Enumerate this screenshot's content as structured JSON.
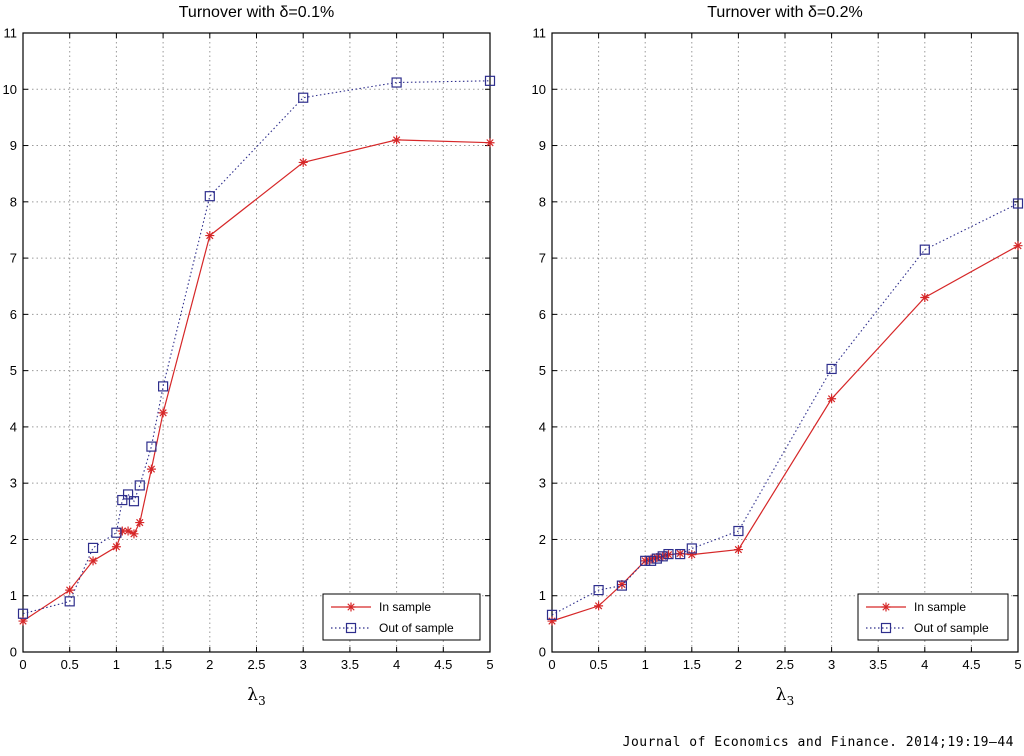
{
  "source_caption": "Journal of Economics and Finance. 2014;19:19–44",
  "colors": {
    "in_sample": "#d62728",
    "out_of_sample": "#2e2e8c",
    "grid": "#9a9a9a"
  },
  "chart_data": [
    {
      "type": "line",
      "title": "Turnover with δ=0.1%",
      "xlabel": "λ",
      "xlabel_subscript": "3",
      "ylabel": "",
      "xlim": [
        0,
        5
      ],
      "ylim": [
        0,
        11
      ],
      "xticks": [
        0,
        0.5,
        1,
        1.5,
        2,
        2.5,
        3,
        3.5,
        4,
        4.5,
        5
      ],
      "xtick_labels": [
        "0",
        "0.5",
        "1",
        "1.5",
        "2",
        "2.5",
        "3",
        "3.5",
        "4",
        "4.5",
        "5"
      ],
      "yticks": [
        0,
        1,
        2,
        3,
        4,
        5,
        6,
        7,
        8,
        9,
        10,
        11
      ],
      "ytick_labels": [
        "0",
        "1",
        "2",
        "3",
        "4",
        "5",
        "6",
        "7",
        "8",
        "9",
        "10",
        "11"
      ],
      "grid": true,
      "legend_position": "bottom-right",
      "series": [
        {
          "name": "In sample",
          "line": "solid",
          "marker": "star",
          "x": [
            0,
            0.5,
            0.75,
            1,
            1.063,
            1.125,
            1.188,
            1.25,
            1.375,
            1.5,
            2,
            3,
            4,
            5
          ],
          "y": [
            0.55,
            1.1,
            1.62,
            1.87,
            2.15,
            2.15,
            2.1,
            2.3,
            3.25,
            4.25,
            7.4,
            8.7,
            9.1,
            9.05
          ]
        },
        {
          "name": "Out of sample",
          "line": "dotted",
          "marker": "square",
          "x": [
            0,
            0.5,
            0.75,
            1,
            1.063,
            1.125,
            1.188,
            1.25,
            1.375,
            1.5,
            2,
            3,
            4,
            5
          ],
          "y": [
            0.68,
            0.9,
            1.85,
            2.12,
            2.7,
            2.8,
            2.68,
            2.96,
            3.65,
            4.72,
            8.1,
            9.85,
            10.12,
            10.15
          ]
        }
      ]
    },
    {
      "type": "line",
      "title": "Turnover with δ=0.2%",
      "xlabel": "λ",
      "xlabel_subscript": "3",
      "ylabel": "",
      "xlim": [
        0,
        5
      ],
      "ylim": [
        0,
        11
      ],
      "xticks": [
        0,
        0.5,
        1,
        1.5,
        2,
        2.5,
        3,
        3.5,
        4,
        4.5,
        5
      ],
      "xtick_labels": [
        "0",
        "0.5",
        "1",
        "1.5",
        "2",
        "2.5",
        "3",
        "3.5",
        "4",
        "4.5",
        "5"
      ],
      "yticks": [
        0,
        1,
        2,
        3,
        4,
        5,
        6,
        7,
        8,
        9,
        10,
        11
      ],
      "ytick_labels": [
        "0",
        "1",
        "2",
        "3",
        "4",
        "5",
        "6",
        "7",
        "8",
        "9",
        "10",
        "11"
      ],
      "grid": true,
      "legend_position": "bottom-right",
      "series": [
        {
          "name": "In sample",
          "line": "solid",
          "marker": "star",
          "x": [
            0,
            0.5,
            0.75,
            1,
            1.063,
            1.125,
            1.188,
            1.25,
            1.375,
            1.5,
            2,
            3,
            4,
            5
          ],
          "y": [
            0.55,
            0.82,
            1.2,
            1.62,
            1.65,
            1.68,
            1.7,
            1.73,
            1.75,
            1.73,
            1.82,
            4.5,
            6.3,
            7.22
          ]
        },
        {
          "name": "Out of sample",
          "line": "dotted",
          "marker": "square",
          "x": [
            0,
            0.5,
            0.75,
            1,
            1.063,
            1.125,
            1.188,
            1.25,
            1.375,
            1.5,
            2,
            3,
            4,
            5
          ],
          "y": [
            0.66,
            1.1,
            1.18,
            1.62,
            1.62,
            1.66,
            1.7,
            1.74,
            1.74,
            1.84,
            2.15,
            5.03,
            7.15,
            7.97
          ]
        }
      ]
    }
  ]
}
